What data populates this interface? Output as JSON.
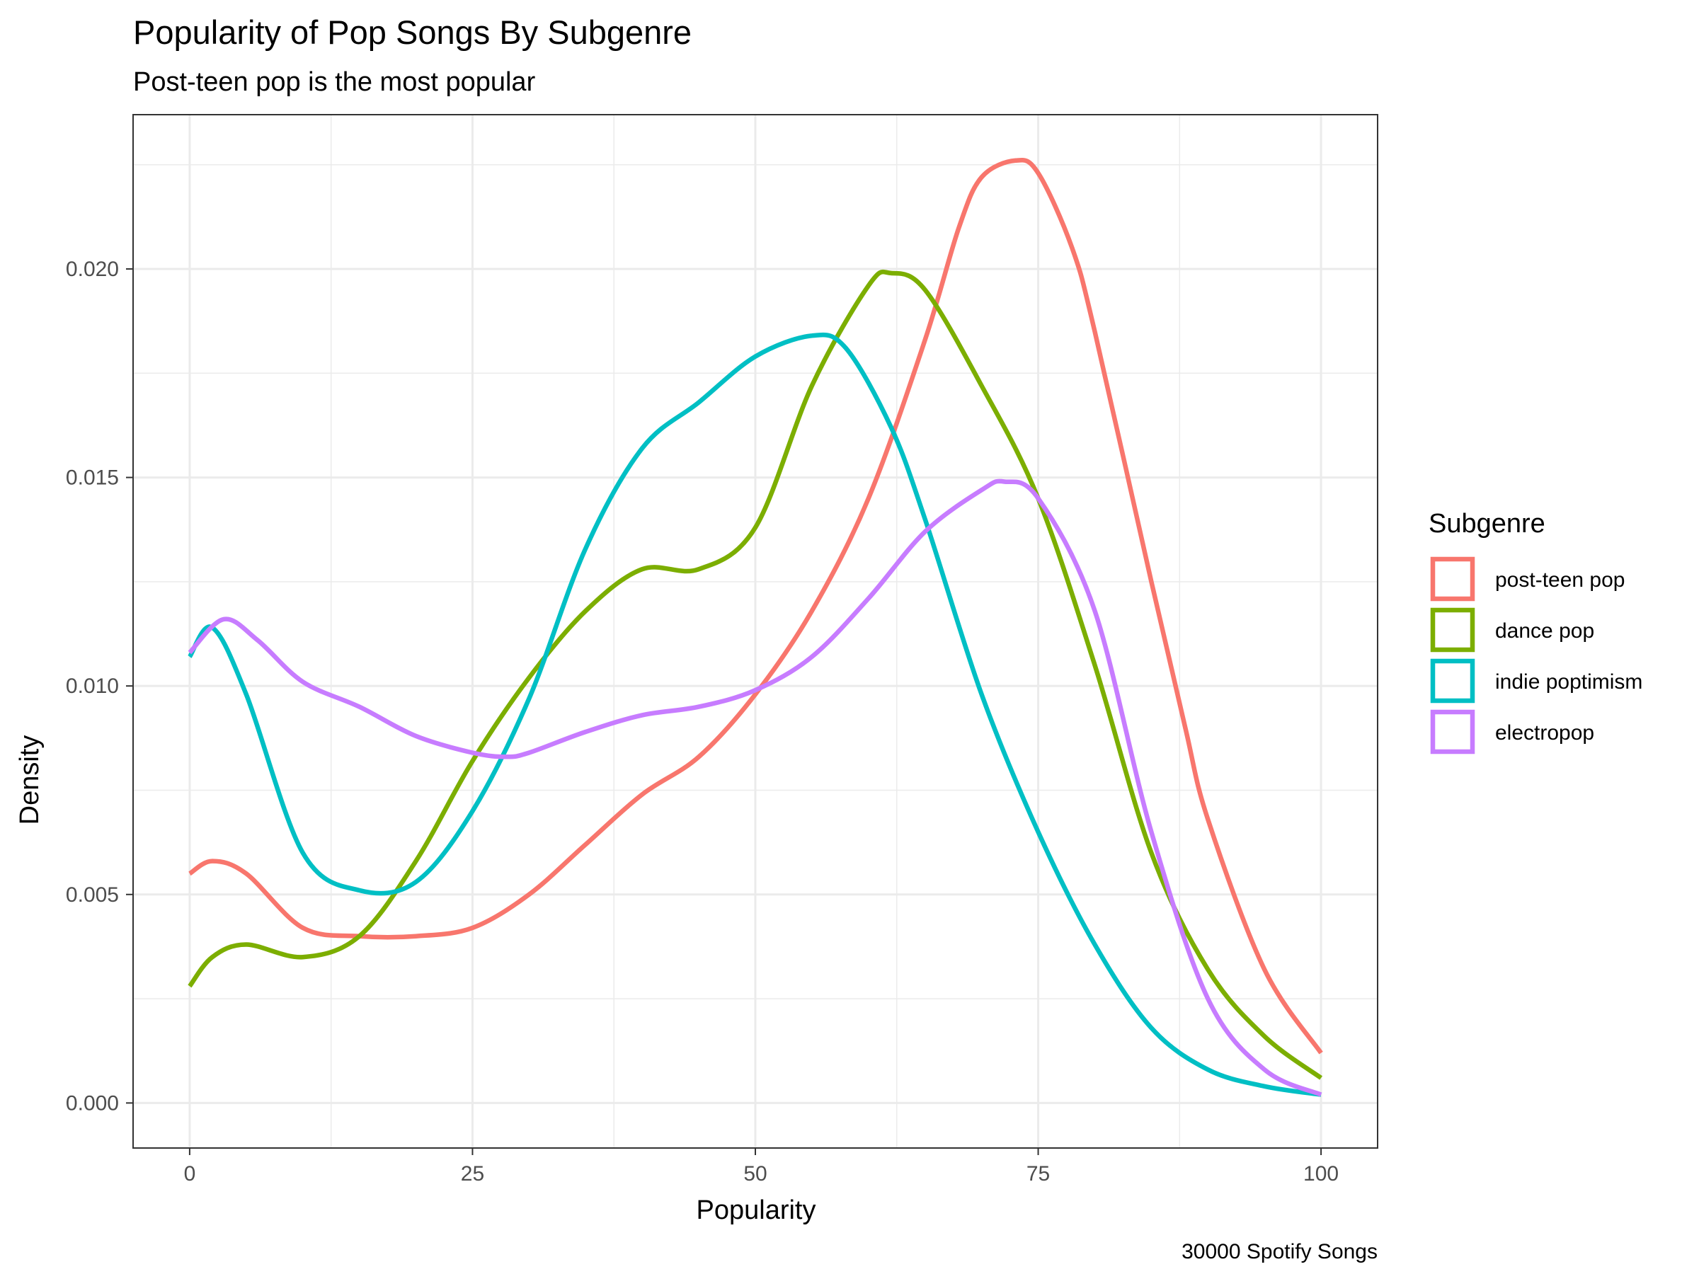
{
  "chart_data": {
    "type": "line",
    "title": "Popularity of Pop Songs By Subgenre",
    "subtitle": "Post-teen pop is the most popular",
    "xlabel": "Popularity",
    "ylabel": "Density",
    "caption": "30000 Spotify Songs",
    "legend_title": "Subgenre",
    "legend_position": "right",
    "grid": true,
    "xlim": [
      -5,
      105
    ],
    "ylim": [
      -0.00108,
      0.0237
    ],
    "x_ticks": [
      0,
      25,
      50,
      75,
      100
    ],
    "x_tick_labels": [
      "0",
      "25",
      "50",
      "75",
      "100"
    ],
    "y_ticks": [
      0.0,
      0.005,
      0.01,
      0.015,
      0.02
    ],
    "y_tick_labels": [
      "0.000",
      "0.005",
      "0.010",
      "0.015",
      "0.020"
    ],
    "x_minor_ticks": [
      12.5,
      37.5,
      62.5,
      87.5
    ],
    "y_minor_ticks": [
      0.0025,
      0.0075,
      0.0125,
      0.0175,
      0.0225
    ],
    "series": [
      {
        "name": "post-teen pop",
        "color": "#F8766D",
        "x": [
          0,
          2,
          5,
          10,
          15,
          20,
          25,
          30,
          35,
          40,
          45,
          50,
          55,
          60,
          65,
          68,
          70,
          73,
          75,
          78,
          80,
          85,
          88,
          90,
          95,
          100
        ],
        "y": [
          0.0055,
          0.0058,
          0.0055,
          0.0042,
          0.004,
          0.004,
          0.0042,
          0.005,
          0.0062,
          0.0074,
          0.0083,
          0.0098,
          0.0118,
          0.0145,
          0.0183,
          0.021,
          0.0222,
          0.0226,
          0.0223,
          0.0205,
          0.0185,
          0.0125,
          0.009,
          0.0068,
          0.0032,
          0.0012
        ]
      },
      {
        "name": "dance pop",
        "color": "#7CAE00",
        "x": [
          0,
          2,
          5,
          10,
          15,
          20,
          25,
          30,
          35,
          40,
          45,
          50,
          55,
          60,
          62,
          65,
          70,
          75,
          80,
          85,
          90,
          95,
          100
        ],
        "y": [
          0.0028,
          0.0035,
          0.0038,
          0.0035,
          0.004,
          0.0058,
          0.0082,
          0.0102,
          0.0118,
          0.0128,
          0.0128,
          0.0138,
          0.0172,
          0.0196,
          0.0199,
          0.0195,
          0.0172,
          0.0145,
          0.0105,
          0.006,
          0.0032,
          0.0016,
          0.0006
        ]
      },
      {
        "name": "indie poptimism",
        "color": "#00BFC4",
        "x": [
          0,
          2,
          5,
          10,
          15,
          20,
          25,
          30,
          35,
          40,
          45,
          50,
          55,
          58,
          62,
          65,
          70,
          75,
          80,
          85,
          90,
          95,
          100
        ],
        "y": [
          0.0107,
          0.0114,
          0.0098,
          0.006,
          0.0051,
          0.0053,
          0.007,
          0.0097,
          0.0133,
          0.0157,
          0.0168,
          0.0179,
          0.0184,
          0.0181,
          0.0162,
          0.014,
          0.0098,
          0.0065,
          0.0038,
          0.0018,
          0.0008,
          0.0004,
          0.0002
        ]
      },
      {
        "name": "electropop",
        "color": "#C77CFF",
        "x": [
          0,
          3,
          6,
          10,
          15,
          20,
          25,
          28,
          30,
          35,
          40,
          45,
          50,
          55,
          60,
          65,
          70,
          72,
          75,
          80,
          85,
          90,
          95,
          100
        ],
        "y": [
          0.0108,
          0.0116,
          0.0111,
          0.0101,
          0.0095,
          0.0088,
          0.0084,
          0.0083,
          0.0084,
          0.0089,
          0.0093,
          0.0095,
          0.0099,
          0.0107,
          0.0121,
          0.0137,
          0.0147,
          0.0149,
          0.0145,
          0.0118,
          0.0065,
          0.0025,
          0.0008,
          0.0002
        ]
      }
    ]
  }
}
